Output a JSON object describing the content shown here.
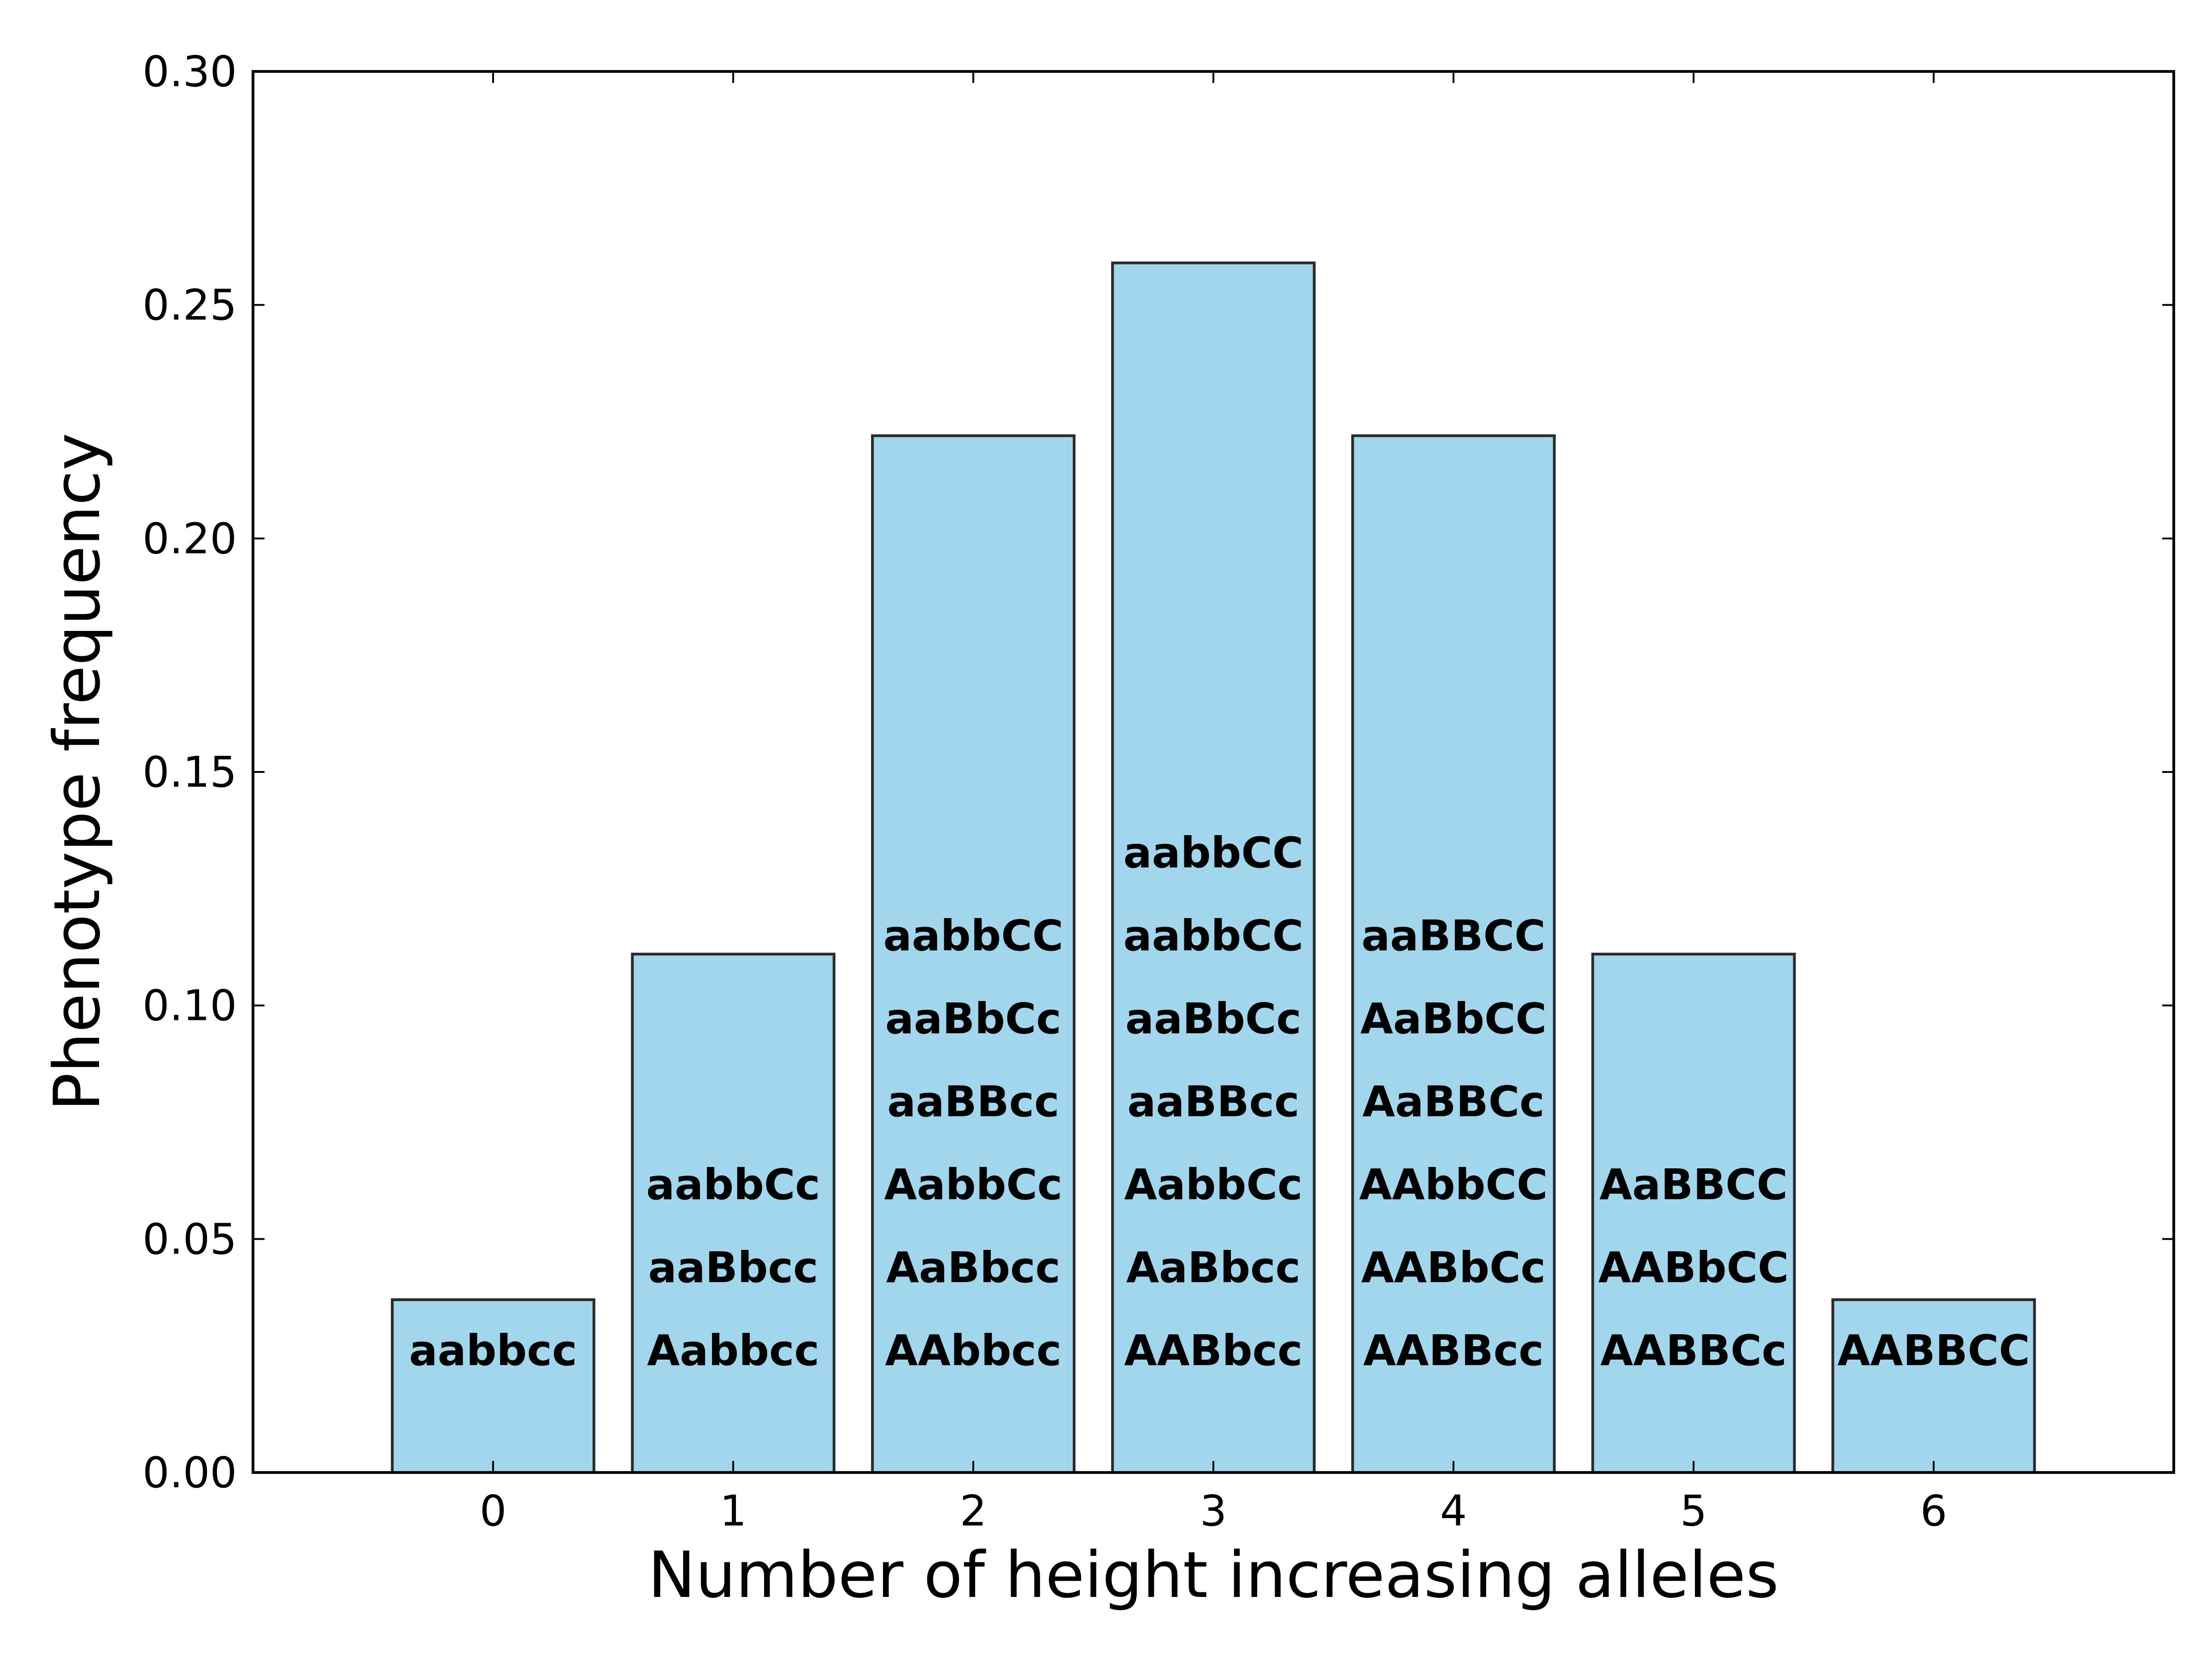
{
  "chart_data": {
    "type": "bar",
    "title": "",
    "xlabel": "Number of height increasing alleles",
    "ylabel": "Phenotype frequency",
    "categories": [
      "0",
      "1",
      "2",
      "3",
      "4",
      "5",
      "6"
    ],
    "x": [
      0,
      1,
      2,
      3,
      4,
      5,
      6
    ],
    "values": [
      0.037,
      0.111,
      0.222,
      0.259,
      0.222,
      0.111,
      0.037
    ],
    "bar_labels": [
      [
        "aabbcc"
      ],
      [
        "Aabbcc",
        "aaBbcc",
        "aabbCc"
      ],
      [
        "AAbbcc",
        "AaBbcc",
        "AabbCc",
        "aaBBcc",
        "aaBbCc",
        "aabbCC"
      ],
      [
        "AABbcc",
        "AaBbcc",
        "AabbCc",
        "aaBBcc",
        "aaBbCc",
        "aabbCC",
        "aabbCC"
      ],
      [
        "AABBcc",
        "AABbCc",
        "AAbbCC",
        "AaBBCc",
        "AaBbCC",
        "aaBBCC"
      ],
      [
        "AABBCc",
        "AABbCC",
        "AaBBCC"
      ],
      [
        "AABBCC"
      ]
    ],
    "xlim": [
      -1,
      7
    ],
    "ylim": [
      0,
      0.3
    ],
    "xticks": [
      0,
      1,
      2,
      3,
      4,
      5,
      6
    ],
    "yticks": [
      0.0,
      0.05,
      0.1,
      0.15,
      0.2,
      0.25,
      0.3
    ],
    "ytick_labels": [
      "0.00",
      "0.05",
      "0.10",
      "0.15",
      "0.20",
      "0.25",
      "0.30"
    ],
    "grid": false,
    "legend": "none",
    "colors": {
      "bar_fill": "#a1d6ed",
      "bar_edge": "#2b2b2b",
      "axis": "#000000",
      "label_text": "#000000"
    }
  }
}
